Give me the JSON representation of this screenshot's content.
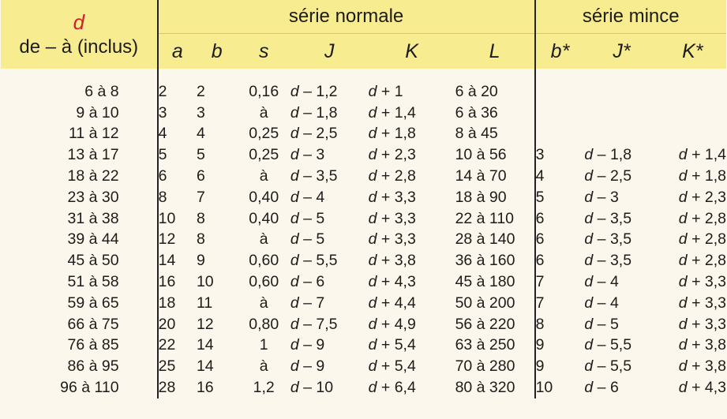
{
  "header": {
    "d_symbol": "d",
    "range_label": "de – à (inclus)",
    "series_normal": "série normale",
    "series_mince": "série mince",
    "cols": [
      "a",
      "b",
      "s",
      "J",
      "K",
      "L",
      "b*",
      "J*",
      "K*"
    ]
  },
  "rows": [
    {
      "d": "6 à    8",
      "a": "2",
      "b": "2",
      "s": "0,16",
      "J": "d – 1,2",
      "K": "d + 1",
      "L": "6 à   20",
      "bs": "",
      "Js": "",
      "Ks": ""
    },
    {
      "d": "9 à   10",
      "a": "3",
      "b": "3",
      "s": "à",
      "J": "d – 1,8",
      "K": "d + 1,4",
      "L": "6 à   36",
      "bs": "",
      "Js": "",
      "Ks": ""
    },
    {
      "d": "11 à   12",
      "a": "4",
      "b": "4",
      "s": "0,25",
      "J": "d – 2,5",
      "K": "d + 1,8",
      "L": "8 à   45",
      "bs": "",
      "Js": "",
      "Ks": ""
    },
    {
      "d": "13 à   17",
      "a": "5",
      "b": "5",
      "s": "0,25",
      "J": "d – 3",
      "K": "d + 2,3",
      "L": "10 à   56",
      "bs": "3",
      "Js": "d – 1,8",
      "Ks": "d + 1,4"
    },
    {
      "d": "18 à   22",
      "a": "6",
      "b": "6",
      "s": "à",
      "J": "d – 3,5",
      "K": "d + 2,8",
      "L": "14 à   70",
      "bs": "4",
      "Js": "d – 2,5",
      "Ks": "d + 1,8"
    },
    {
      "d": "23 à   30",
      "a": "8",
      "b": "7",
      "s": "0,40",
      "J": "d – 4",
      "K": "d + 3,3",
      "L": "18 à   90",
      "bs": "5",
      "Js": "d – 3",
      "Ks": "d + 2,3"
    },
    {
      "d": "31 à   38",
      "a": "10",
      "b": "8",
      "s": "0,40",
      "J": "d – 5",
      "K": "d + 3,3",
      "L": "22 à 110",
      "bs": "6",
      "Js": "d – 3,5",
      "Ks": "d + 2,8"
    },
    {
      "d": "39 à   44",
      "a": "12",
      "b": "8",
      "s": "à",
      "J": "d – 5",
      "K": "d + 3,3",
      "L": "28 à 140",
      "bs": "6",
      "Js": "d – 3,5",
      "Ks": "d + 2,8"
    },
    {
      "d": "45 à   50",
      "a": "14",
      "b": "9",
      "s": "0,60",
      "J": "d – 5,5",
      "K": "d + 3,8",
      "L": "36 à 160",
      "bs": "6",
      "Js": "d – 3,5",
      "Ks": "d + 2,8"
    },
    {
      "d": "51 à   58",
      "a": "16",
      "b": "10",
      "s": "0,60",
      "J": "d – 6",
      "K": "d + 4,3",
      "L": "45 à 180",
      "bs": "7",
      "Js": "d – 4",
      "Ks": "d + 3,3"
    },
    {
      "d": "59 à   65",
      "a": "18",
      "b": "11",
      "s": "à",
      "J": "d – 7",
      "K": "d + 4,4",
      "L": "50 à 200",
      "bs": "7",
      "Js": "d – 4",
      "Ks": "d + 3,3"
    },
    {
      "d": "66 à   75",
      "a": "20",
      "b": "12",
      "s": "0,80",
      "J": "d – 7,5",
      "K": "d + 4,9",
      "L": "56 à 220",
      "bs": "8",
      "Js": "d – 5",
      "Ks": "d + 3,3"
    },
    {
      "d": "76 à   85",
      "a": "22",
      "b": "14",
      "s": "1",
      "J": "d – 9",
      "K": "d + 5,4",
      "L": "63 à 250",
      "bs": "9",
      "Js": "d – 5,5",
      "Ks": "d + 3,8"
    },
    {
      "d": "86 à   95",
      "a": "25",
      "b": "14",
      "s": "à",
      "J": "d – 9",
      "K": "d + 5,4",
      "L": "70 à 280",
      "bs": "9",
      "Js": "d – 5,5",
      "Ks": "d + 3,8"
    },
    {
      "d": "96 à 110",
      "a": "28",
      "b": "16",
      "s": "1,2",
      "J": "d – 10",
      "K": "d + 6,4",
      "L": "80 à 320",
      "bs": "10",
      "Js": "d – 6",
      "Ks": "d + 4,3"
    }
  ]
}
